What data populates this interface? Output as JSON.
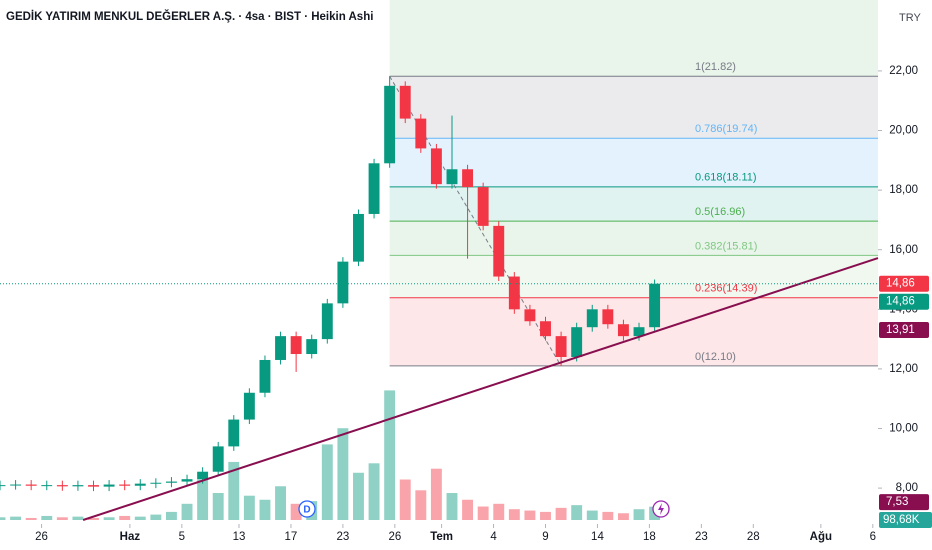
{
  "chart_data": {
    "type": "candlestick",
    "title": "GEDİK YATIRIM MENKUL DEĞERLER A.Ş. · 4sa · BIST · Heikin Ashi",
    "currency": "TRY",
    "xlim": [
      0,
      169
    ],
    "xticks": [
      {
        "value": 8,
        "label": "26"
      },
      {
        "value": 25,
        "label": "Haz"
      },
      {
        "value": 35,
        "label": "5"
      },
      {
        "value": 46,
        "label": "13"
      },
      {
        "value": 56,
        "label": "17"
      },
      {
        "value": 66,
        "label": "23"
      },
      {
        "value": 76,
        "label": "26"
      },
      {
        "value": 85,
        "label": "Tem"
      },
      {
        "value": 95,
        "label": "4"
      },
      {
        "value": 105,
        "label": "9"
      },
      {
        "value": 115,
        "label": "14"
      },
      {
        "value": 125,
        "label": "18"
      },
      {
        "value": 135,
        "label": "23"
      },
      {
        "value": 145,
        "label": "28"
      },
      {
        "value": 158,
        "label": "Ağu"
      },
      {
        "value": 168,
        "label": "6"
      }
    ],
    "ylim": [
      6.93,
      24.38
    ],
    "yticks": [
      {
        "value": 8,
        "label": "8,00"
      },
      {
        "value": 10,
        "label": "10,00"
      },
      {
        "value": 12,
        "label": "12,00"
      },
      {
        "value": 14,
        "label": "14,00"
      },
      {
        "value": 16,
        "label": "16,00"
      },
      {
        "value": 18,
        "label": "18,00"
      },
      {
        "value": 20,
        "label": "20,00"
      },
      {
        "value": 22,
        "label": "22,00"
      }
    ],
    "up_color": "#089981",
    "down_color": "#f23645",
    "candles": {
      "x": [
        0,
        3,
        6,
        9,
        12,
        15,
        18,
        21,
        24,
        27,
        30,
        33,
        36,
        39,
        42,
        45,
        48,
        51,
        54,
        57,
        60,
        63,
        66,
        69,
        72,
        75,
        78,
        81,
        84,
        87,
        90,
        93,
        96,
        99,
        102,
        105,
        108,
        111,
        114,
        117,
        120,
        123,
        126
      ],
      "open": [
        8.08,
        8.1,
        8.12,
        8.08,
        8.1,
        8.06,
        8.1,
        8.05,
        8.12,
        8.08,
        8.15,
        8.18,
        8.22,
        8.3,
        8.55,
        9.4,
        10.3,
        11.2,
        12.3,
        13.1,
        12.5,
        13.0,
        14.2,
        15.6,
        17.2,
        18.9,
        21.5,
        20.4,
        19.4,
        18.2,
        18.7,
        18.1,
        16.8,
        15.1,
        14.0,
        13.6,
        13.1,
        12.4,
        13.4,
        14.0,
        13.5,
        13.1,
        13.4
      ],
      "high": [
        8.25,
        8.27,
        8.27,
        8.25,
        8.25,
        8.25,
        8.25,
        8.27,
        8.27,
        8.3,
        8.33,
        8.37,
        8.45,
        8.7,
        9.55,
        10.45,
        11.35,
        12.45,
        13.25,
        13.25,
        13.15,
        14.35,
        15.75,
        17.35,
        19.05,
        21.82,
        21.65,
        20.55,
        19.55,
        20.5,
        18.85,
        18.25,
        16.95,
        15.25,
        14.15,
        13.75,
        13.25,
        13.55,
        14.15,
        14.15,
        13.65,
        13.55,
        15.0
      ],
      "low": [
        7.93,
        7.95,
        7.93,
        7.93,
        7.91,
        7.91,
        7.9,
        7.9,
        7.93,
        7.93,
        8.0,
        8.03,
        8.07,
        8.15,
        8.4,
        9.25,
        10.15,
        11.05,
        12.15,
        11.9,
        12.35,
        12.85,
        14.05,
        15.45,
        17.05,
        18.75,
        20.25,
        19.25,
        18.05,
        18.05,
        15.7,
        16.65,
        14.95,
        13.85,
        13.45,
        12.95,
        12.1,
        12.25,
        13.25,
        13.35,
        12.95,
        12.95,
        13.25
      ],
      "close": [
        8.1,
        8.12,
        8.08,
        8.1,
        8.06,
        8.1,
        8.05,
        8.12,
        8.08,
        8.15,
        8.18,
        8.22,
        8.3,
        8.55,
        9.4,
        10.3,
        11.2,
        12.3,
        13.1,
        12.5,
        13.0,
        14.2,
        15.6,
        17.2,
        18.9,
        21.5,
        20.4,
        19.4,
        18.2,
        18.7,
        18.1,
        16.8,
        15.1,
        14.0,
        13.6,
        13.1,
        12.4,
        13.4,
        14.0,
        13.5,
        13.1,
        13.4,
        14.86
      ]
    },
    "volume": {
      "values": [
        20,
        25,
        15,
        30,
        20,
        25,
        15,
        20,
        30,
        25,
        40,
        60,
        120,
        300,
        200,
        430,
        180,
        150,
        250,
        120,
        140,
        560,
        680,
        350,
        420,
        960,
        300,
        220,
        380,
        200,
        150,
        100,
        120,
        80,
        70,
        60,
        90,
        110,
        70,
        60,
        50,
        80,
        98.68
      ],
      "ylim": [
        0,
        1000
      ],
      "last_label": "98,68K"
    },
    "fib": {
      "x": [
        75,
        108
      ],
      "levels": [
        {
          "label": "1(21.82)",
          "value": 21.82,
          "color": "#787b86"
        },
        {
          "label": "0.786(19.74)",
          "value": 19.74,
          "color": "#64b5f6"
        },
        {
          "label": "0.618(18.11)",
          "value": 18.11,
          "color": "#089981"
        },
        {
          "label": "0.5(16.96)",
          "value": 16.96,
          "color": "#4caf50"
        },
        {
          "label": "0.382(15.81)",
          "value": 15.81,
          "color": "#81c784"
        },
        {
          "label": "0.236(14.39)",
          "value": 14.39,
          "color": "#f23645"
        },
        {
          "label": "0(12.10)",
          "value": 12.1,
          "color": "#787b86"
        }
      ]
    },
    "trendline": {
      "x": [
        16,
        169
      ],
      "y": [
        6.93,
        15.72
      ],
      "color": "#880e4f"
    },
    "price_labels": [
      {
        "label": "14,86",
        "value": 14.86,
        "color": "#f23645"
      },
      {
        "label": "14,86",
        "value": 14.86,
        "color": "#089981"
      },
      {
        "label": "13,91",
        "value": 13.91,
        "color": "#880e4f"
      },
      {
        "label": "7,53",
        "value": 7.53,
        "color": "#880e4f"
      }
    ]
  }
}
